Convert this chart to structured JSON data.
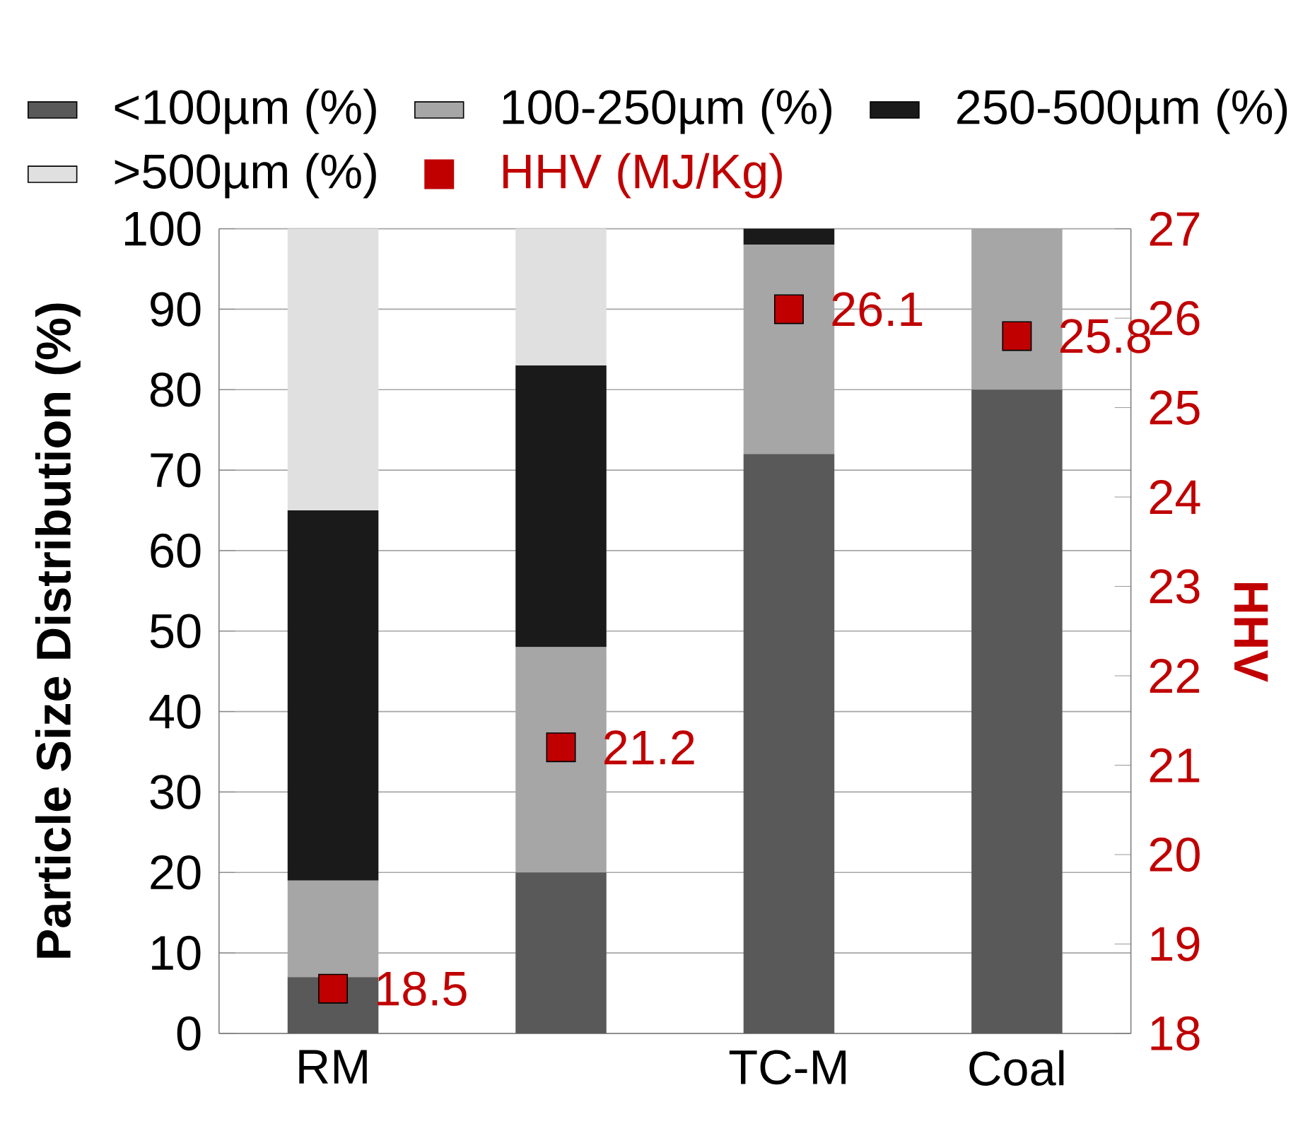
{
  "chart_data": {
    "type": "bar",
    "stacked": true,
    "categories": [
      "RM",
      null,
      "TC-M",
      "Coal"
    ],
    "ylabel": "Particle Size Distribution (%)",
    "y2label": "HHV",
    "ylim": [
      0,
      100
    ],
    "yticks": [
      0,
      10,
      20,
      30,
      40,
      50,
      60,
      70,
      80,
      90,
      100
    ],
    "y2lim": [
      18,
      27
    ],
    "y2ticks": [
      18,
      19,
      20,
      21,
      22,
      23,
      24,
      25,
      26,
      27
    ],
    "grid": "y",
    "legend": "top",
    "series": [
      {
        "name": "<100µm (%)",
        "color": "#595959",
        "values": [
          7,
          20,
          72,
          80
        ]
      },
      {
        "name": "100-250µm (%)",
        "color": "#a6a6a6",
        "values": [
          12,
          28,
          26,
          20
        ]
      },
      {
        "name": "250-500µm (%)",
        "color": "#1a1a1a",
        "values": [
          46,
          35,
          2,
          0
        ]
      },
      {
        "name": ">500µm (%)",
        "color": "#e0e0e0",
        "values": [
          35,
          17,
          0,
          0
        ]
      },
      {
        "name": "HHV (MJ/Kg)",
        "type": "scatter",
        "axis": "y2",
        "marker": "square",
        "color": "#c00000",
        "values": [
          18.5,
          21.2,
          26.1,
          25.8
        ],
        "value_labels": [
          "18.5",
          "21.2",
          "26.1",
          "25.8"
        ]
      }
    ]
  }
}
